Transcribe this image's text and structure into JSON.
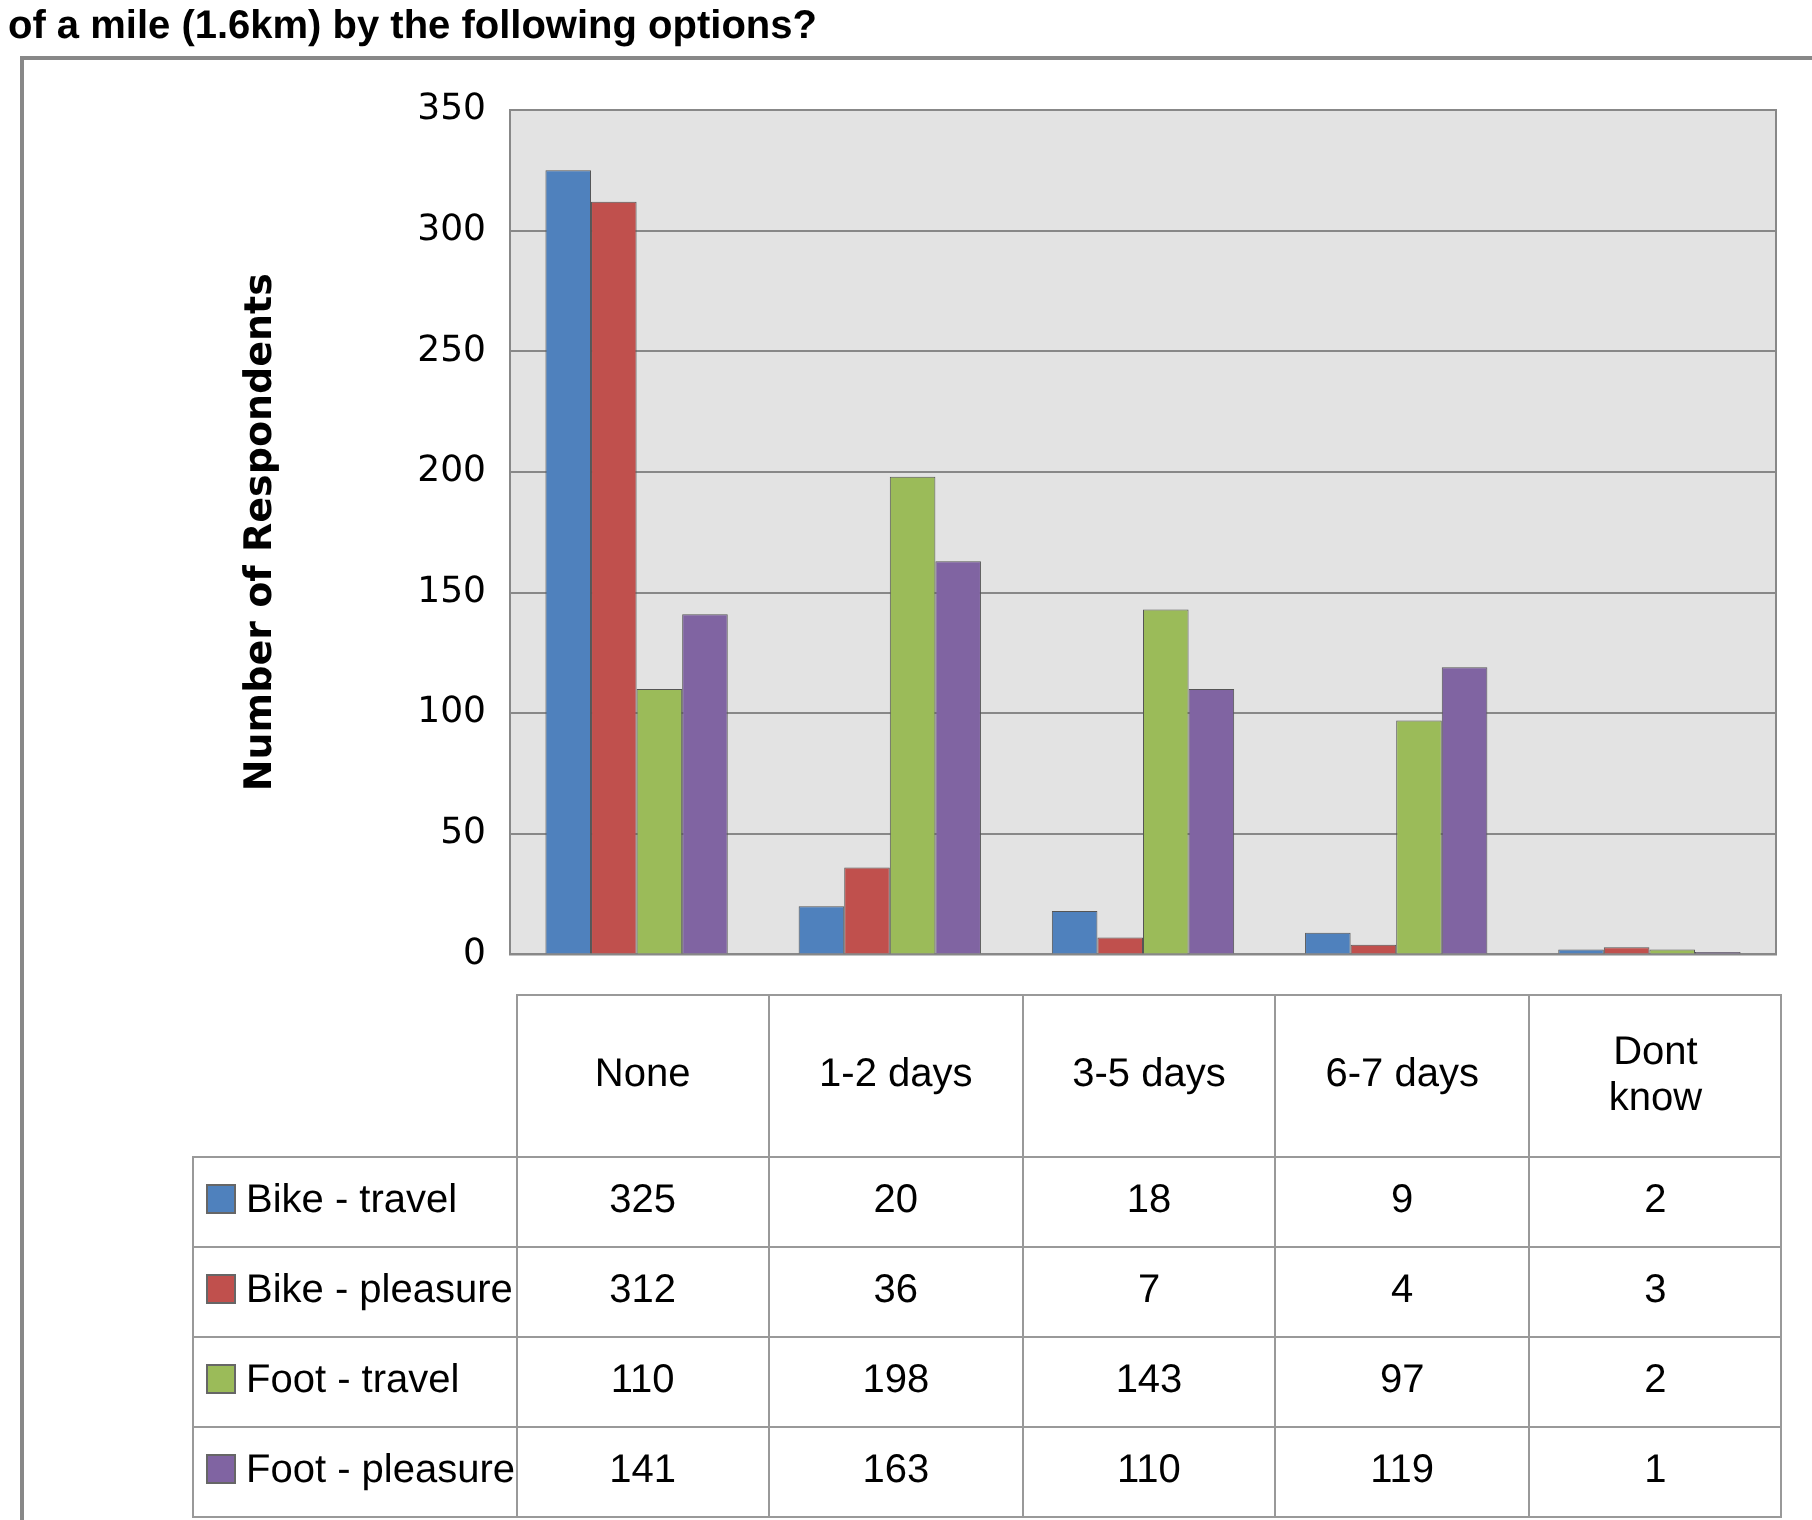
{
  "chart_data": {
    "type": "bar",
    "title": "of a mile (1.6km) by the following options?",
    "ylabel": "Number of Respondents",
    "categories": [
      "None",
      "1-2 days",
      "3-5 days",
      "6-7 days",
      "Dont know"
    ],
    "series": [
      {
        "name": "Bike - travel",
        "color": "#4f81bd",
        "values": [
          325,
          20,
          18,
          9,
          2
        ]
      },
      {
        "name": "Bike - pleasure",
        "color": "#c0504d",
        "values": [
          312,
          36,
          7,
          4,
          3
        ]
      },
      {
        "name": "Foot - travel",
        "color": "#9bbb59",
        "values": [
          110,
          198,
          143,
          97,
          2
        ]
      },
      {
        "name": "Foot - pleasure",
        "color": "#8064a2",
        "values": [
          141,
          163,
          110,
          119,
          1
        ]
      }
    ],
    "ylim": [
      0,
      350
    ],
    "yticks": [
      0,
      50,
      100,
      150,
      200,
      250,
      300,
      350
    ],
    "grid": "y",
    "legend": "bottom",
    "data_labels": true
  }
}
